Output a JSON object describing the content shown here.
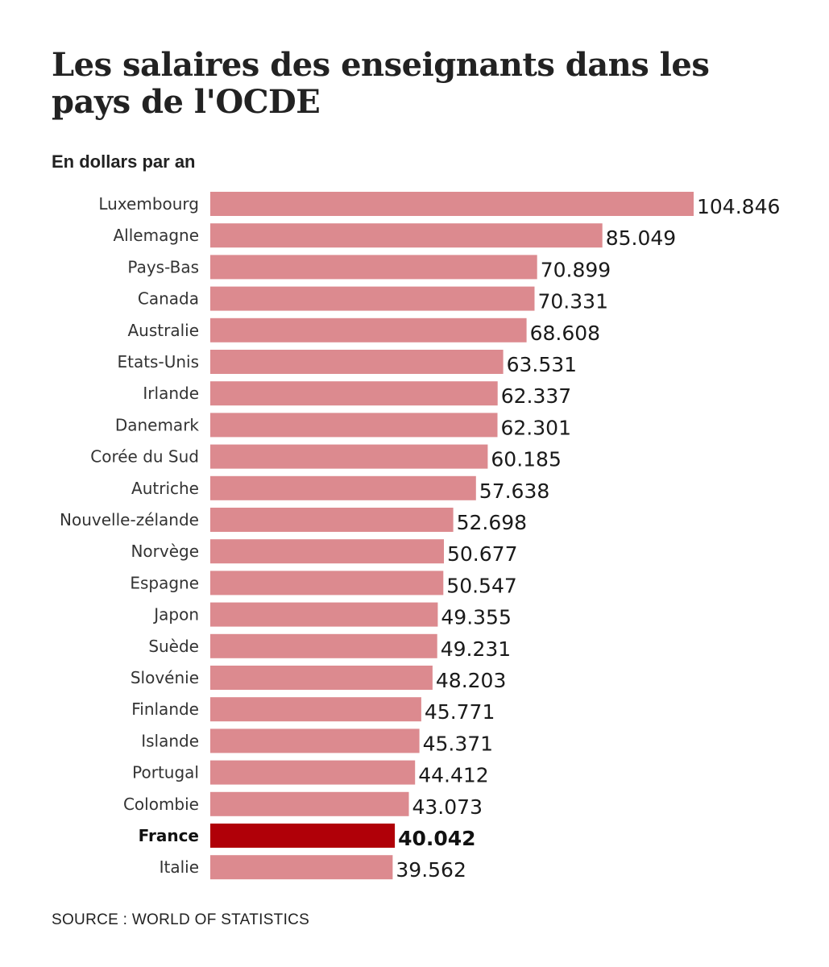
{
  "chart_data": {
    "type": "bar",
    "orientation": "horizontal",
    "title": "Les salaires des enseignants dans les pays de l'OCDE",
    "subtitle": "En dollars par an",
    "source": "SOURCE : WORLD OF STATISTICS",
    "categories": [
      "Luxembourg",
      "Allemagne",
      "Pays-Bas",
      "Canada",
      "Australie",
      "Etats-Unis",
      "Irlande",
      "Danemark",
      "Corée du Sud",
      "Autriche",
      "Nouvelle-zélande",
      "Norvège",
      "Espagne",
      "Japon",
      "Suède",
      "Slovénie",
      "Finlande",
      "Islande",
      "Portugal",
      "Colombie",
      "France",
      "Italie"
    ],
    "values": [
      104846,
      85049,
      70899,
      70331,
      68608,
      63531,
      62337,
      62301,
      60185,
      57638,
      52698,
      50677,
      50547,
      49355,
      49231,
      48203,
      45771,
      45371,
      44412,
      43073,
      40042,
      39562
    ],
    "value_labels": [
      "104.846",
      "85.049",
      "70.899",
      "70.331",
      "68.608",
      "63.531",
      "62.337",
      "62.301",
      "60.185",
      "57.638",
      "52.698",
      "50.677",
      "50.547",
      "49.355",
      "49.231",
      "48.203",
      "45.771",
      "45.371",
      "44.412",
      "43.073",
      "40.042",
      "39.562"
    ],
    "highlight": "France",
    "colors": {
      "bar": "#dc8a8f",
      "highlight": "#b00008"
    },
    "grid": false,
    "legend": "none"
  }
}
